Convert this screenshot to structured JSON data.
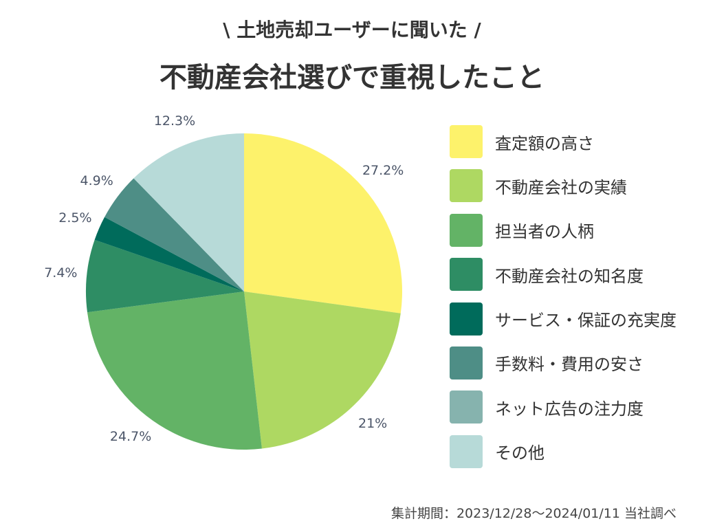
{
  "header": {
    "subtitle": "\\ 土地売却ユーザーに聞いた /",
    "title": "不動産会社選びで重視したこと"
  },
  "chart_data": {
    "type": "pie",
    "title": "不動産会社選びで重視したこと",
    "legend_position": "right",
    "slices": [
      {
        "label": "査定額の高さ",
        "value": 27.2,
        "display": "27.2%",
        "color": "#fdf26b"
      },
      {
        "label": "不動産会社の実績",
        "value": 21,
        "display": "21%",
        "color": "#aed862"
      },
      {
        "label": "担当者の人柄",
        "value": 24.7,
        "display": "24.7%",
        "color": "#63b366"
      },
      {
        "label": "不動産会社の知名度",
        "value": 7.4,
        "display": "7.4%",
        "color": "#2e8d64"
      },
      {
        "label": "サービス・保証の充実度",
        "value": 2.5,
        "display": "2.5%",
        "color": "#006b5b"
      },
      {
        "label": "手数料・費用の安さ",
        "value": 4.9,
        "display": "4.9%",
        "color": "#4e8e86"
      },
      {
        "label": "ネット広告の注力度",
        "value": 0,
        "display": "",
        "color": "#86b3ae"
      },
      {
        "label": "その他",
        "value": 12.3,
        "display": "12.3%",
        "color": "#b7dad8"
      }
    ]
  },
  "footnote": "集計期間：2023/12/28〜2024/01/11 当社調べ"
}
